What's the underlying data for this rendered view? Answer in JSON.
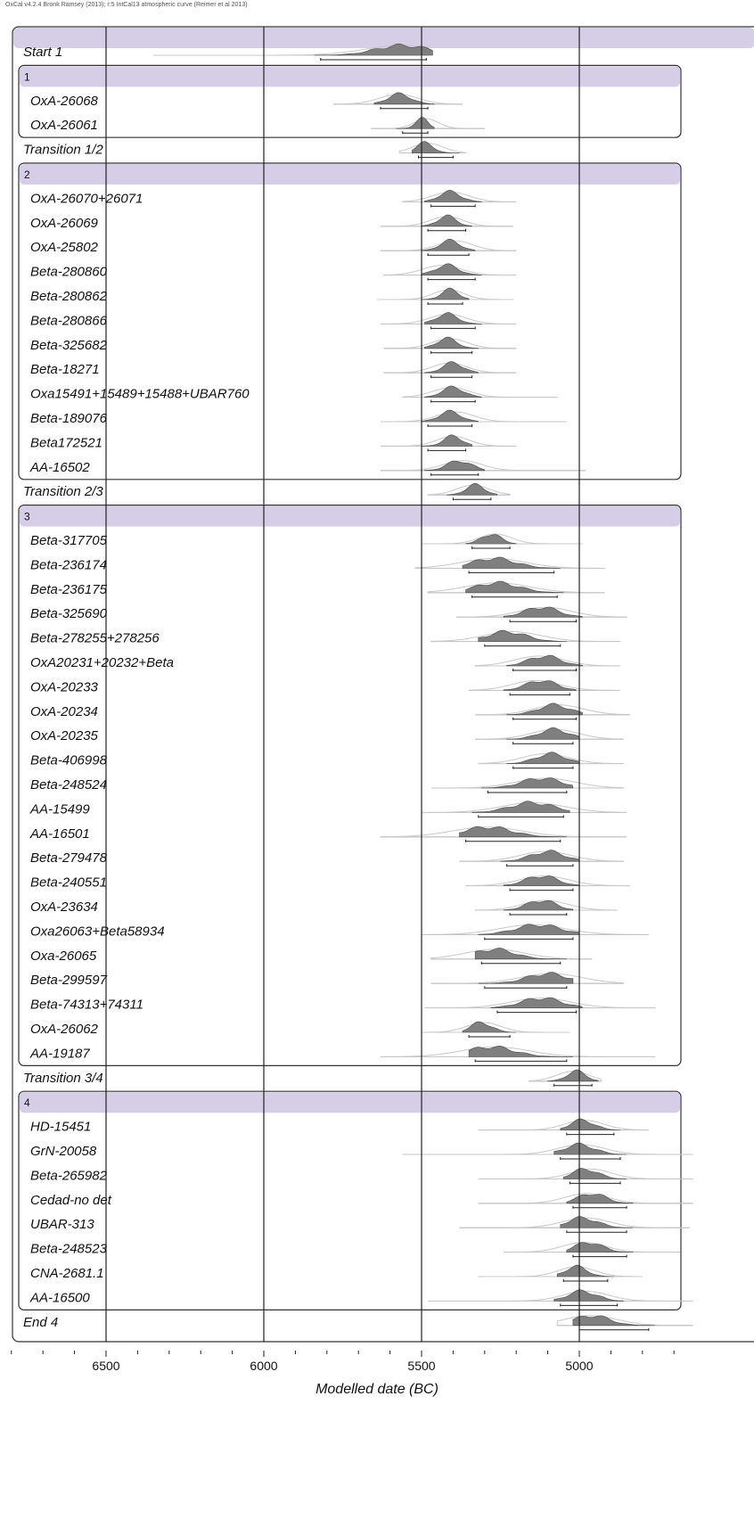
{
  "header_note": "OxCal v4.2.4 Bronk Ramsey (2013); r:5 IntCal13 atmospheric curve (Reimer et al 2013)",
  "chart_data": {
    "type": "multiplot",
    "xlabel": "Modelled date (BC)",
    "x_ticks": [
      6500,
      6000,
      5500,
      5000
    ],
    "x_reversed": true,
    "xlim": [
      6800,
      4640
    ],
    "colors": {
      "phase_header": "#d6cde6",
      "posterior": "#7f7f7f",
      "prior": "#c8c8c8",
      "frame": "#333333"
    },
    "rows": [
      {
        "kind": "boundary",
        "label": "Start 1",
        "mode": 5560,
        "range": [
          5820,
          5485
        ],
        "line": [
          6350,
          5480
        ]
      },
      {
        "kind": "phase",
        "label": "1"
      },
      {
        "kind": "date",
        "label": "OxA-26068",
        "mode": 5570,
        "range": [
          5630,
          5480
        ],
        "line": [
          5780,
          5370
        ]
      },
      {
        "kind": "date",
        "label": "OxA-26061",
        "mode": 5500,
        "range": [
          5560,
          5480
        ],
        "line": [
          5660,
          5300
        ]
      },
      {
        "kind": "boundary",
        "label": "Transition 1/2",
        "mode": 5490,
        "range": [
          5510,
          5400
        ],
        "line": [
          5570,
          5360
        ]
      },
      {
        "kind": "phase",
        "label": "2"
      },
      {
        "kind": "date",
        "label": "OxA-26070+26071",
        "mode": 5410,
        "range": [
          5470,
          5330
        ],
        "line": [
          5560,
          5200
        ]
      },
      {
        "kind": "date",
        "label": "OxA-26069",
        "mode": 5420,
        "range": [
          5480,
          5360
        ],
        "line": [
          5630,
          5210
        ]
      },
      {
        "kind": "date",
        "label": "OxA-25802",
        "mode": 5410,
        "range": [
          5480,
          5350
        ],
        "line": [
          5630,
          5200
        ]
      },
      {
        "kind": "date",
        "label": "Beta-280860",
        "mode": 5420,
        "range": [
          5480,
          5330
        ],
        "line": [
          5620,
          5200
        ]
      },
      {
        "kind": "date",
        "label": "Beta-280862",
        "mode": 5410,
        "range": [
          5480,
          5370
        ],
        "line": [
          5640,
          5210
        ]
      },
      {
        "kind": "date",
        "label": "Beta-280866",
        "mode": 5420,
        "range": [
          5470,
          5330
        ],
        "line": [
          5630,
          5200
        ]
      },
      {
        "kind": "date",
        "label": "Beta-325682",
        "mode": 5420,
        "range": [
          5470,
          5340
        ],
        "line": [
          5620,
          5200
        ]
      },
      {
        "kind": "date",
        "label": "Beta-18271",
        "mode": 5400,
        "range": [
          5470,
          5340
        ],
        "line": [
          5620,
          5200
        ]
      },
      {
        "kind": "date",
        "label": "Oxa15491+15489+15488+UBAR760",
        "mode": 5400,
        "range": [
          5470,
          5330
        ],
        "line": [
          5560,
          5070
        ]
      },
      {
        "kind": "date",
        "label": "Beta-189076",
        "mode": 5410,
        "range": [
          5480,
          5340
        ],
        "line": [
          5630,
          5040
        ]
      },
      {
        "kind": "date",
        "label": "Beta172521",
        "mode": 5400,
        "range": [
          5480,
          5360
        ],
        "line": [
          5630,
          5200
        ]
      },
      {
        "kind": "date",
        "label": "AA-16502",
        "mode": 5380,
        "range": [
          5470,
          5320
        ],
        "line": [
          5630,
          4980
        ]
      },
      {
        "kind": "boundary",
        "label": "Transition 2/3",
        "mode": 5330,
        "range": [
          5400,
          5280
        ],
        "line": [
          5480,
          5220
        ]
      },
      {
        "kind": "phase",
        "label": "3"
      },
      {
        "kind": "date",
        "label": "Beta-317705",
        "mode": 5280,
        "range": [
          5340,
          5220
        ],
        "line": [
          5500,
          4990
        ]
      },
      {
        "kind": "date",
        "label": "Beta-236174",
        "mode": 5270,
        "range": [
          5350,
          5080
        ],
        "line": [
          5520,
          4920
        ]
      },
      {
        "kind": "date",
        "label": "Beta-236175",
        "mode": 5260,
        "range": [
          5340,
          5070
        ],
        "line": [
          5480,
          4920
        ]
      },
      {
        "kind": "date",
        "label": "Beta-325690",
        "mode": 5120,
        "range": [
          5220,
          5010
        ],
        "line": [
          5390,
          4850
        ]
      },
      {
        "kind": "date",
        "label": "Beta-278255+278256",
        "mode": 5230,
        "range": [
          5300,
          5060
        ],
        "line": [
          5470,
          4870
        ]
      },
      {
        "kind": "date",
        "label": "OxA20231+20232+Beta",
        "mode": 5110,
        "range": [
          5210,
          5010
        ],
        "line": [
          5330,
          4870
        ]
      },
      {
        "kind": "date",
        "label": "OxA-20233",
        "mode": 5120,
        "range": [
          5220,
          5030
        ],
        "line": [
          5350,
          4870
        ]
      },
      {
        "kind": "date",
        "label": "OxA-20234",
        "mode": 5080,
        "range": [
          5210,
          5010
        ],
        "line": [
          5330,
          4840
        ]
      },
      {
        "kind": "date",
        "label": "OxA-20235",
        "mode": 5080,
        "range": [
          5210,
          5020
        ],
        "line": [
          5330,
          4860
        ]
      },
      {
        "kind": "date",
        "label": "Beta-406998",
        "mode": 5090,
        "range": [
          5210,
          5020
        ],
        "line": [
          5320,
          4860
        ]
      },
      {
        "kind": "date",
        "label": "Beta-248524",
        "mode": 5120,
        "range": [
          5290,
          5040
        ],
        "line": [
          5470,
          4860
        ]
      },
      {
        "kind": "date",
        "label": "AA-15499",
        "mode": 5150,
        "range": [
          5320,
          5050
        ],
        "line": [
          5500,
          4850
        ]
      },
      {
        "kind": "date",
        "label": "AA-16501",
        "mode": 5290,
        "range": [
          5360,
          5060
        ],
        "line": [
          5630,
          4850
        ]
      },
      {
        "kind": "date",
        "label": "Beta-279478",
        "mode": 5100,
        "range": [
          5230,
          5020
        ],
        "line": [
          5380,
          4860
        ]
      },
      {
        "kind": "date",
        "label": "Beta-240551",
        "mode": 5120,
        "range": [
          5220,
          5020
        ],
        "line": [
          5360,
          4840
        ]
      },
      {
        "kind": "date",
        "label": "OxA-23634",
        "mode": 5120,
        "range": [
          5220,
          5040
        ],
        "line": [
          5330,
          4880
        ]
      },
      {
        "kind": "date",
        "label": "Oxa26063+Beta58934",
        "mode": 5130,
        "range": [
          5300,
          5020
        ],
        "line": [
          5500,
          4780
        ]
      },
      {
        "kind": "date",
        "label": "Oxa-26065",
        "mode": 5270,
        "range": [
          5310,
          5060
        ],
        "line": [
          5470,
          4960
        ]
      },
      {
        "kind": "date",
        "label": "Beta-299597",
        "mode": 5100,
        "range": [
          5300,
          5040
        ],
        "line": [
          5470,
          4860
        ]
      },
      {
        "kind": "date",
        "label": "Beta-74313+74311",
        "mode": 5120,
        "range": [
          5260,
          5010
        ],
        "line": [
          5490,
          4760
        ]
      },
      {
        "kind": "date",
        "label": "OxA-26062",
        "mode": 5310,
        "range": [
          5350,
          5220
        ],
        "line": [
          5500,
          5030
        ]
      },
      {
        "kind": "date",
        "label": "AA-19187",
        "mode": 5280,
        "range": [
          5330,
          5040
        ],
        "line": [
          5630,
          4760
        ]
      },
      {
        "kind": "boundary",
        "label": "Transition 3/4",
        "mode": 5010,
        "range": [
          5080,
          4960
        ],
        "line": [
          5160,
          4930
        ]
      },
      {
        "kind": "phase",
        "label": "4"
      },
      {
        "kind": "date",
        "label": "HD-15451",
        "mode": 4990,
        "range": [
          5040,
          4890
        ],
        "line": [
          5320,
          4780
        ]
      },
      {
        "kind": "date",
        "label": "GrN-20058",
        "mode": 5000,
        "range": [
          5060,
          4870
        ],
        "line": [
          5560,
          4640
        ]
      },
      {
        "kind": "date",
        "label": "Beta-265982",
        "mode": 4980,
        "range": [
          5030,
          4870
        ],
        "line": [
          5320,
          4640
        ]
      },
      {
        "kind": "date",
        "label": "Cedad-no det",
        "mode": 4960,
        "range": [
          5020,
          4850
        ],
        "line": [
          5320,
          4640
        ]
      },
      {
        "kind": "date",
        "label": "UBAR-313",
        "mode": 4990,
        "range": [
          5040,
          4850
        ],
        "line": [
          5380,
          4650
        ]
      },
      {
        "kind": "date",
        "label": "Beta-248523",
        "mode": 4970,
        "range": [
          5020,
          4850
        ],
        "line": [
          5240,
          4680
        ]
      },
      {
        "kind": "date",
        "label": "CNA-2681.1",
        "mode": 5010,
        "range": [
          5050,
          4910
        ],
        "line": [
          5320,
          4800
        ]
      },
      {
        "kind": "date",
        "label": "AA-16500",
        "mode": 4990,
        "range": [
          5060,
          4880
        ],
        "line": [
          5480,
          4640
        ]
      },
      {
        "kind": "boundary",
        "label": "End 4",
        "mode": 4960,
        "range": [
          5000,
          4780
        ],
        "line": [
          5070,
          4640
        ]
      }
    ]
  }
}
